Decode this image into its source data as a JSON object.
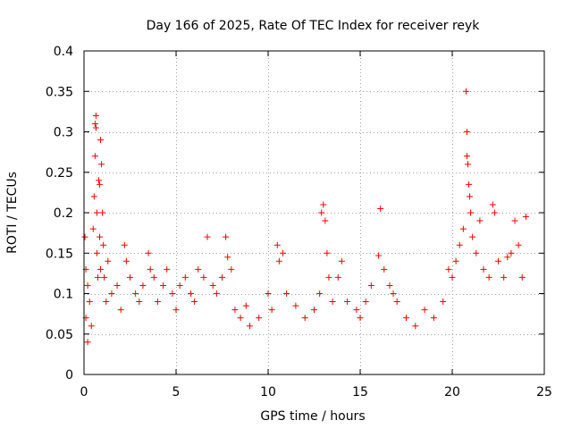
{
  "chart_data": {
    "type": "scatter",
    "title": "Day 166 of 2025, Rate Of TEC Index for receiver reyk",
    "xlabel": "GPS time / hours",
    "ylabel": "ROTI / TECUs",
    "xlim": [
      0,
      25
    ],
    "ylim": [
      0,
      0.4
    ],
    "x_ticks": [
      0,
      5,
      10,
      15,
      20,
      25
    ],
    "x_tick_labels": [
      "0",
      "5",
      "10",
      "15",
      "20",
      "25"
    ],
    "y_ticks": [
      0,
      0.05,
      0.1,
      0.15,
      0.2,
      0.25,
      0.3,
      0.35,
      0.4
    ],
    "y_tick_labels": [
      "0",
      "0.05",
      "0.1",
      "0.15",
      "0.2",
      "0.25",
      "0.3",
      "0.35",
      "0.4"
    ],
    "grid": true,
    "marker": "+",
    "marker_color": "#ff0000",
    "series": [
      {
        "points": [
          [
            0.05,
            0.17
          ],
          [
            0.1,
            0.13
          ],
          [
            0.1,
            0.07
          ],
          [
            0.2,
            0.11
          ],
          [
            0.2,
            0.04
          ],
          [
            0.3,
            0.09
          ],
          [
            0.4,
            0.06
          ],
          [
            0.5,
            0.18
          ],
          [
            0.55,
            0.22
          ],
          [
            0.6,
            0.27
          ],
          [
            0.6,
            0.31
          ],
          [
            0.65,
            0.32
          ],
          [
            0.65,
            0.305
          ],
          [
            0.7,
            0.2
          ],
          [
            0.7,
            0.15
          ],
          [
            0.75,
            0.12
          ],
          [
            0.8,
            0.24
          ],
          [
            0.85,
            0.235
          ],
          [
            0.85,
            0.17
          ],
          [
            0.9,
            0.13
          ],
          [
            0.9,
            0.29
          ],
          [
            0.95,
            0.26
          ],
          [
            1.0,
            0.2
          ],
          [
            1.05,
            0.16
          ],
          [
            1.1,
            0.12
          ],
          [
            1.2,
            0.09
          ],
          [
            1.3,
            0.14
          ],
          [
            1.5,
            0.1
          ],
          [
            1.8,
            0.11
          ],
          [
            2.0,
            0.08
          ],
          [
            2.2,
            0.16
          ],
          [
            2.3,
            0.14
          ],
          [
            2.5,
            0.12
          ],
          [
            2.8,
            0.1
          ],
          [
            3.0,
            0.09
          ],
          [
            3.2,
            0.11
          ],
          [
            3.5,
            0.15
          ],
          [
            3.6,
            0.13
          ],
          [
            3.8,
            0.12
          ],
          [
            4.0,
            0.09
          ],
          [
            4.3,
            0.11
          ],
          [
            4.5,
            0.13
          ],
          [
            4.8,
            0.1
          ],
          [
            5.0,
            0.08
          ],
          [
            5.2,
            0.11
          ],
          [
            5.5,
            0.12
          ],
          [
            5.8,
            0.1
          ],
          [
            6.0,
            0.09
          ],
          [
            6.2,
            0.13
          ],
          [
            6.5,
            0.12
          ],
          [
            6.7,
            0.17
          ],
          [
            7.0,
            0.11
          ],
          [
            7.2,
            0.1
          ],
          [
            7.5,
            0.12
          ],
          [
            7.7,
            0.17
          ],
          [
            7.8,
            0.145
          ],
          [
            8.0,
            0.13
          ],
          [
            8.2,
            0.08
          ],
          [
            8.5,
            0.07
          ],
          [
            8.8,
            0.085
          ],
          [
            9.0,
            0.06
          ],
          [
            9.5,
            0.07
          ],
          [
            10.0,
            0.1
          ],
          [
            10.2,
            0.08
          ],
          [
            10.5,
            0.16
          ],
          [
            10.6,
            0.14
          ],
          [
            10.8,
            0.15
          ],
          [
            11.0,
            0.1
          ],
          [
            11.5,
            0.085
          ],
          [
            12.0,
            0.07
          ],
          [
            12.5,
            0.08
          ],
          [
            12.8,
            0.1
          ],
          [
            12.9,
            0.2
          ],
          [
            13.0,
            0.21
          ],
          [
            13.1,
            0.19
          ],
          [
            13.2,
            0.15
          ],
          [
            13.3,
            0.12
          ],
          [
            13.5,
            0.09
          ],
          [
            13.8,
            0.12
          ],
          [
            14.0,
            0.14
          ],
          [
            14.3,
            0.09
          ],
          [
            14.8,
            0.08
          ],
          [
            15.0,
            0.07
          ],
          [
            15.3,
            0.09
          ],
          [
            15.6,
            0.11
          ],
          [
            16.0,
            0.147
          ],
          [
            16.1,
            0.205
          ],
          [
            16.3,
            0.13
          ],
          [
            16.6,
            0.11
          ],
          [
            16.8,
            0.1
          ],
          [
            17.0,
            0.09
          ],
          [
            17.5,
            0.07
          ],
          [
            18.0,
            0.06
          ],
          [
            18.5,
            0.08
          ],
          [
            19.0,
            0.07
          ],
          [
            19.5,
            0.09
          ],
          [
            19.8,
            0.13
          ],
          [
            20.0,
            0.12
          ],
          [
            20.2,
            0.14
          ],
          [
            20.4,
            0.16
          ],
          [
            20.6,
            0.18
          ],
          [
            20.75,
            0.35
          ],
          [
            20.8,
            0.3
          ],
          [
            20.8,
            0.27
          ],
          [
            20.85,
            0.26
          ],
          [
            20.9,
            0.235
          ],
          [
            20.95,
            0.22
          ],
          [
            21.0,
            0.2
          ],
          [
            21.1,
            0.17
          ],
          [
            21.3,
            0.15
          ],
          [
            21.5,
            0.19
          ],
          [
            21.7,
            0.13
          ],
          [
            22.0,
            0.12
          ],
          [
            22.2,
            0.21
          ],
          [
            22.3,
            0.2
          ],
          [
            22.5,
            0.14
          ],
          [
            22.8,
            0.12
          ],
          [
            23.0,
            0.145
          ],
          [
            23.2,
            0.15
          ],
          [
            23.4,
            0.19
          ],
          [
            23.6,
            0.16
          ],
          [
            23.8,
            0.12
          ],
          [
            24.0,
            0.195
          ]
        ]
      }
    ]
  }
}
